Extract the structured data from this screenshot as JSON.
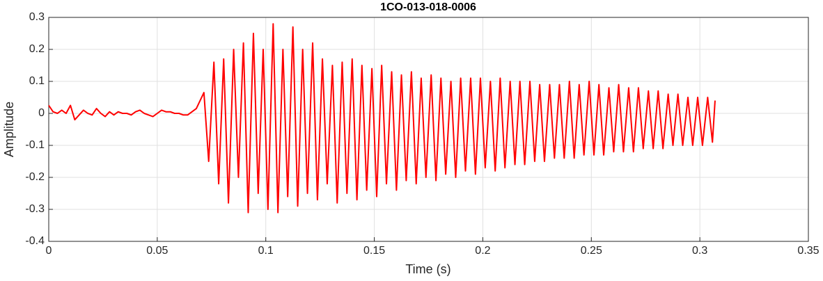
{
  "chart_data": {
    "type": "line",
    "title": "1CO-013-018-0006",
    "xlabel": "Time (s)",
    "ylabel": "Amplitude",
    "color": "#ff0000",
    "grid": true,
    "xlim": [
      0,
      0.35
    ],
    "xticks": [
      0,
      0.05,
      0.1,
      0.15,
      0.2,
      0.25,
      0.3,
      0.35
    ],
    "ylim": [
      -0.4,
      0.3
    ],
    "yticks": [
      -0.4,
      -0.3,
      -0.2,
      -0.1,
      0,
      0.1,
      0.2,
      0.3
    ],
    "x": [
      0,
      0.002,
      0.004,
      0.006,
      0.008,
      0.01,
      0.012,
      0.014,
      0.016,
      0.018,
      0.02,
      0.022,
      0.024,
      0.026,
      0.028,
      0.03,
      0.032,
      0.034,
      0.036,
      0.038,
      0.04,
      0.042,
      0.044,
      0.046,
      0.048,
      0.05,
      0.052,
      0.054,
      0.056,
      0.058,
      0.06,
      0.062,
      0.064,
      0.066,
      0.068,
      0.0715,
      0.0737,
      0.0761,
      0.0783,
      0.0806,
      0.0828,
      0.0852,
      0.0874,
      0.0897,
      0.0919,
      0.0943,
      0.0965,
      0.0988,
      0.101,
      0.1034,
      0.1056,
      0.1079,
      0.1101,
      0.1125,
      0.1147,
      0.117,
      0.1192,
      0.1216,
      0.1238,
      0.1261,
      0.1283,
      0.1307,
      0.1329,
      0.1352,
      0.1374,
      0.1398,
      0.142,
      0.1443,
      0.1465,
      0.1489,
      0.1511,
      0.1534,
      0.1556,
      0.158,
      0.1602,
      0.1625,
      0.1647,
      0.1671,
      0.1693,
      0.1716,
      0.1738,
      0.1762,
      0.1784,
      0.1807,
      0.1829,
      0.1853,
      0.1875,
      0.1898,
      0.192,
      0.1944,
      0.1966,
      0.1989,
      0.2011,
      0.2035,
      0.2057,
      0.208,
      0.2102,
      0.2126,
      0.2148,
      0.2171,
      0.2193,
      0.2217,
      0.2239,
      0.2262,
      0.2284,
      0.2308,
      0.233,
      0.2353,
      0.2375,
      0.2399,
      0.2421,
      0.2444,
      0.2466,
      0.249,
      0.2512,
      0.2535,
      0.2557,
      0.2581,
      0.2603,
      0.2626,
      0.2648,
      0.2672,
      0.2694,
      0.2717,
      0.2739,
      0.2763,
      0.2785,
      0.2808,
      0.283,
      0.2854,
      0.2876,
      0.2899,
      0.2921,
      0.2945,
      0.2967,
      0.299,
      0.3012,
      0.3036,
      0.3058,
      0.307
    ],
    "values": [
      0.025,
      0.005,
      0.0,
      0.01,
      0.0,
      0.025,
      -0.02,
      -0.005,
      0.01,
      0.0,
      -0.005,
      0.015,
      0.0,
      -0.01,
      0.005,
      -0.005,
      0.005,
      0.0,
      0.0,
      -0.005,
      0.005,
      0.01,
      0.0,
      -0.005,
      -0.01,
      0.0,
      0.01,
      0.005,
      0.005,
      0.0,
      0.0,
      -0.005,
      -0.005,
      0.005,
      0.015,
      0.065,
      -0.15,
      0.16,
      -0.22,
      0.17,
      -0.28,
      0.2,
      -0.2,
      0.22,
      -0.31,
      0.25,
      -0.25,
      0.2,
      -0.3,
      0.28,
      -0.31,
      0.2,
      -0.26,
      0.27,
      -0.29,
      0.2,
      -0.25,
      0.22,
      -0.27,
      0.17,
      -0.22,
      0.15,
      -0.28,
      0.16,
      -0.25,
      0.17,
      -0.27,
      0.15,
      -0.24,
      0.14,
      -0.26,
      0.15,
      -0.22,
      0.13,
      -0.24,
      0.12,
      -0.21,
      0.13,
      -0.22,
      0.11,
      -0.2,
      0.12,
      -0.21,
      0.11,
      -0.19,
      0.1,
      -0.2,
      0.11,
      -0.18,
      0.11,
      -0.19,
      0.11,
      -0.17,
      0.1,
      -0.18,
      0.11,
      -0.17,
      0.1,
      -0.16,
      0.1,
      -0.16,
      0.1,
      -0.15,
      0.09,
      -0.15,
      0.09,
      -0.14,
      0.09,
      -0.14,
      0.1,
      -0.14,
      0.09,
      -0.13,
      0.1,
      -0.13,
      0.09,
      -0.13,
      0.08,
      -0.12,
      0.09,
      -0.12,
      0.08,
      -0.12,
      0.08,
      -0.11,
      0.07,
      -0.11,
      0.07,
      -0.11,
      0.06,
      -0.1,
      0.06,
      -0.1,
      0.05,
      -0.1,
      0.05,
      -0.1,
      0.05,
      -0.09,
      0.04
    ]
  }
}
